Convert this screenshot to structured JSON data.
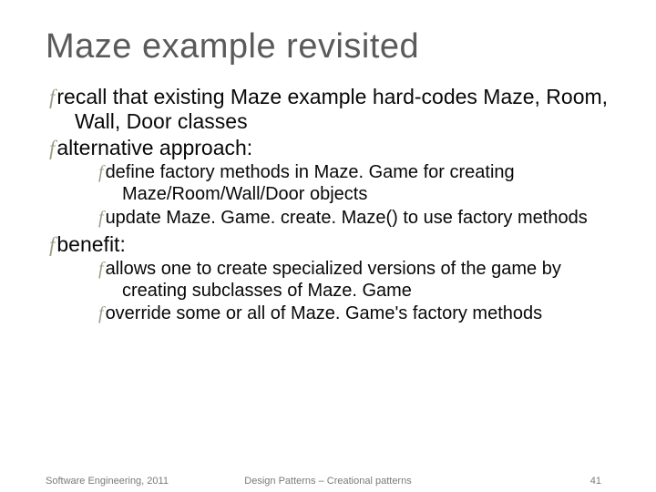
{
  "title": "Maze example revisited",
  "bullets": {
    "b1": "recall that existing Maze example hard-codes Maze, Room, Wall, Door classes",
    "b2": "alternative approach:",
    "b2_1": "define factory methods in Maze. Game for creating Maze/Room/Wall/Door objects",
    "b2_2": "update Maze. Game. create. Maze() to use factory methods",
    "b3": "benefit:",
    "b3_1": "allows one to create specialized versions of the game by creating subclasses of Maze. Game",
    "b3_2": "override some or all of Maze. Game's factory methods"
  },
  "footer": {
    "left": "Software Engineering, 2011",
    "center": "Design Patterns – Creational patterns",
    "page": "41"
  },
  "colors": {
    "title_color": "#5a5a5a",
    "text_color": "#080808",
    "bullet_color": "#9c9c88",
    "footer_color": "#7a7a7a",
    "background": "#ffffff"
  },
  "fonts": {
    "title_size_pt": 28,
    "level1_size_pt": 17,
    "level2_size_pt": 15,
    "footer_size_pt": 8
  },
  "bullet_glyph": "f"
}
